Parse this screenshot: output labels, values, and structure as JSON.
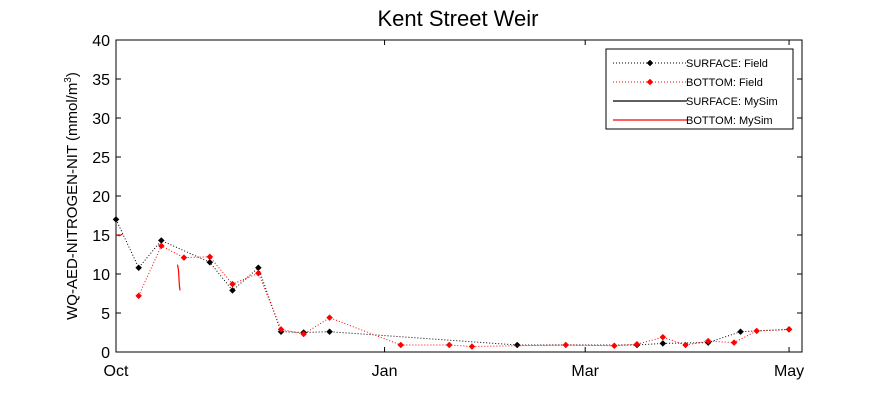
{
  "chart_data": {
    "type": "line",
    "title": "Kent Street Weir",
    "ylabel": "WQ-AED-NITROGEN-NIT (mmol/m",
    "ylabel_sup": "3",
    "ylabel_end": ")",
    "xlabel": "",
    "ylim": [
      0,
      40
    ],
    "yticks": [
      0,
      5,
      10,
      15,
      20,
      25,
      30,
      35,
      40
    ],
    "xlim": [
      0,
      212
    ],
    "xticks": [
      {
        "day": 0,
        "label": "Oct"
      },
      {
        "day": 83,
        "label": "Jan"
      },
      {
        "day": 145,
        "label": "Mar"
      },
      {
        "day": 208,
        "label": "May"
      }
    ],
    "legend": {
      "placement": "top-right"
    },
    "series": [
      {
        "name": "SURFACE: Field",
        "color": "#000000",
        "style": "dotted-marker",
        "points": [
          [
            0,
            17.0
          ],
          [
            7,
            10.8
          ],
          [
            14,
            14.3
          ],
          [
            29,
            11.5
          ],
          [
            36,
            7.9
          ],
          [
            44,
            10.8
          ],
          [
            51,
            2.6
          ],
          [
            58,
            2.5
          ],
          [
            66,
            2.6
          ],
          [
            124,
            0.9
          ],
          [
            161,
            0.9
          ],
          [
            169,
            1.1
          ],
          [
            183,
            1.2
          ],
          [
            193,
            2.6
          ],
          [
            208,
            2.9
          ]
        ]
      },
      {
        "name": "BOTTOM: Field",
        "color": "#ff0000",
        "style": "dotted-marker",
        "points": [
          [
            7,
            7.2
          ],
          [
            14,
            13.6
          ],
          [
            21,
            12.1
          ],
          [
            29,
            12.2
          ],
          [
            36,
            8.7
          ],
          [
            44,
            10.1
          ],
          [
            51,
            2.9
          ],
          [
            58,
            2.3
          ],
          [
            66,
            4.4
          ],
          [
            88,
            0.9
          ],
          [
            103,
            0.9
          ],
          [
            110,
            0.7
          ],
          [
            139,
            0.9
          ],
          [
            154,
            0.8
          ],
          [
            161,
            1.0
          ],
          [
            169,
            1.9
          ],
          [
            176,
            0.9
          ],
          [
            183,
            1.4
          ],
          [
            191,
            1.2
          ],
          [
            198,
            2.7
          ],
          [
            208,
            2.9
          ]
        ]
      },
      {
        "name": "SURFACE: MySim",
        "color": "#000000",
        "style": "solid",
        "points": []
      },
      {
        "name": "BOTTOM: MySim",
        "color": "#ff0000",
        "style": "solid",
        "segments": [
          [
            [
              0,
              15.0
            ],
            [
              1,
              14.9
            ],
            [
              2,
              15.1
            ]
          ],
          [
            [
              19,
              11.2
            ],
            [
              19.3,
              10.5
            ],
            [
              19.6,
              8.5
            ],
            [
              19.8,
              7.9
            ]
          ]
        ]
      }
    ]
  }
}
